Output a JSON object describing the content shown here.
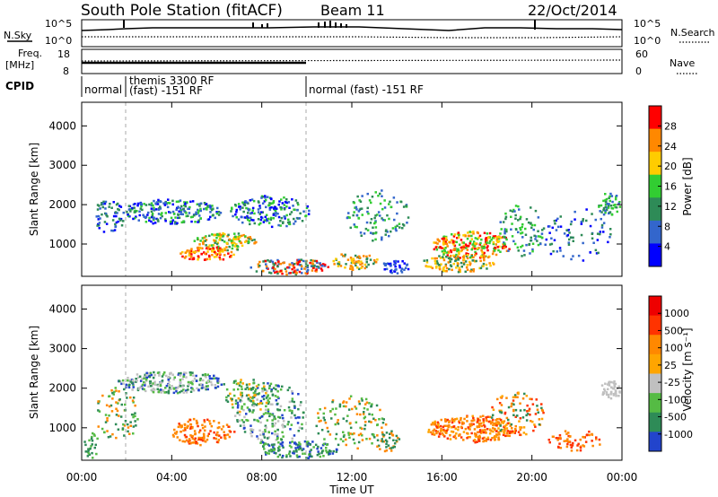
{
  "header": {
    "station": "South Pole Station (fitACF)",
    "beam": "Beam 11",
    "date": "22/Oct/2014"
  },
  "status_panels": {
    "nsky_label": "N.Sky",
    "nsearch_label": "N.Search",
    "nsky_ticks": [
      "10^5",
      "10^0"
    ],
    "nsearch_ticks": [
      "10^5",
      "10^0"
    ],
    "freq_label_1": "Freq.",
    "freq_label_2": "[MHz]",
    "freq_ticks": [
      "18",
      "8"
    ],
    "nave_label": "Nave",
    "nave_ticks": [
      "60",
      "0"
    ],
    "cpid_label": "CPID",
    "cpid_segments": [
      {
        "line1": "normal",
        "line2": ""
      },
      {
        "line1": "themis 3300 RF",
        "line2": "(fast) -151 RF"
      },
      {
        "line1": "normal (fast) -151 RF",
        "line2": ""
      }
    ]
  },
  "chart_data": [
    {
      "type": "heatmap",
      "title": "",
      "ylabel": "Slant Range [km]",
      "xlabel": "",
      "ylim": [
        180,
        4600
      ],
      "yticks": [
        "4000",
        "3000",
        "2000",
        "1000"
      ],
      "colorbar": {
        "label": "Power [dB]",
        "ticks": [
          "28",
          "24",
          "20",
          "16",
          "12",
          "8",
          "4"
        ],
        "colors": [
          "#0000ff",
          "#3366cc",
          "#2e8b57",
          "#32cd32",
          "#ffcc00",
          "#ff8800",
          "#ff0000"
        ]
      }
    },
    {
      "type": "heatmap",
      "title": "",
      "ylabel": "Slant Range [km]",
      "xlabel": "Time UT",
      "ylim": [
        180,
        4600
      ],
      "yticks": [
        "4000",
        "3000",
        "2000",
        "1000"
      ],
      "xticks": [
        "00:00",
        "04:00",
        "08:00",
        "12:00",
        "16:00",
        "20:00",
        "00:00"
      ],
      "colorbar": {
        "label": "Velocity [m s⁻¹]",
        "ticks": [
          "1000",
          "500",
          "100",
          "25",
          "-25",
          "-100",
          "-500",
          "-1000"
        ],
        "colors": [
          "#2244cc",
          "#2e8b57",
          "#55bb44",
          "#c0c0c0",
          "#ffa500",
          "#ff8800",
          "#ff3300",
          "#ee0000"
        ]
      }
    }
  ]
}
